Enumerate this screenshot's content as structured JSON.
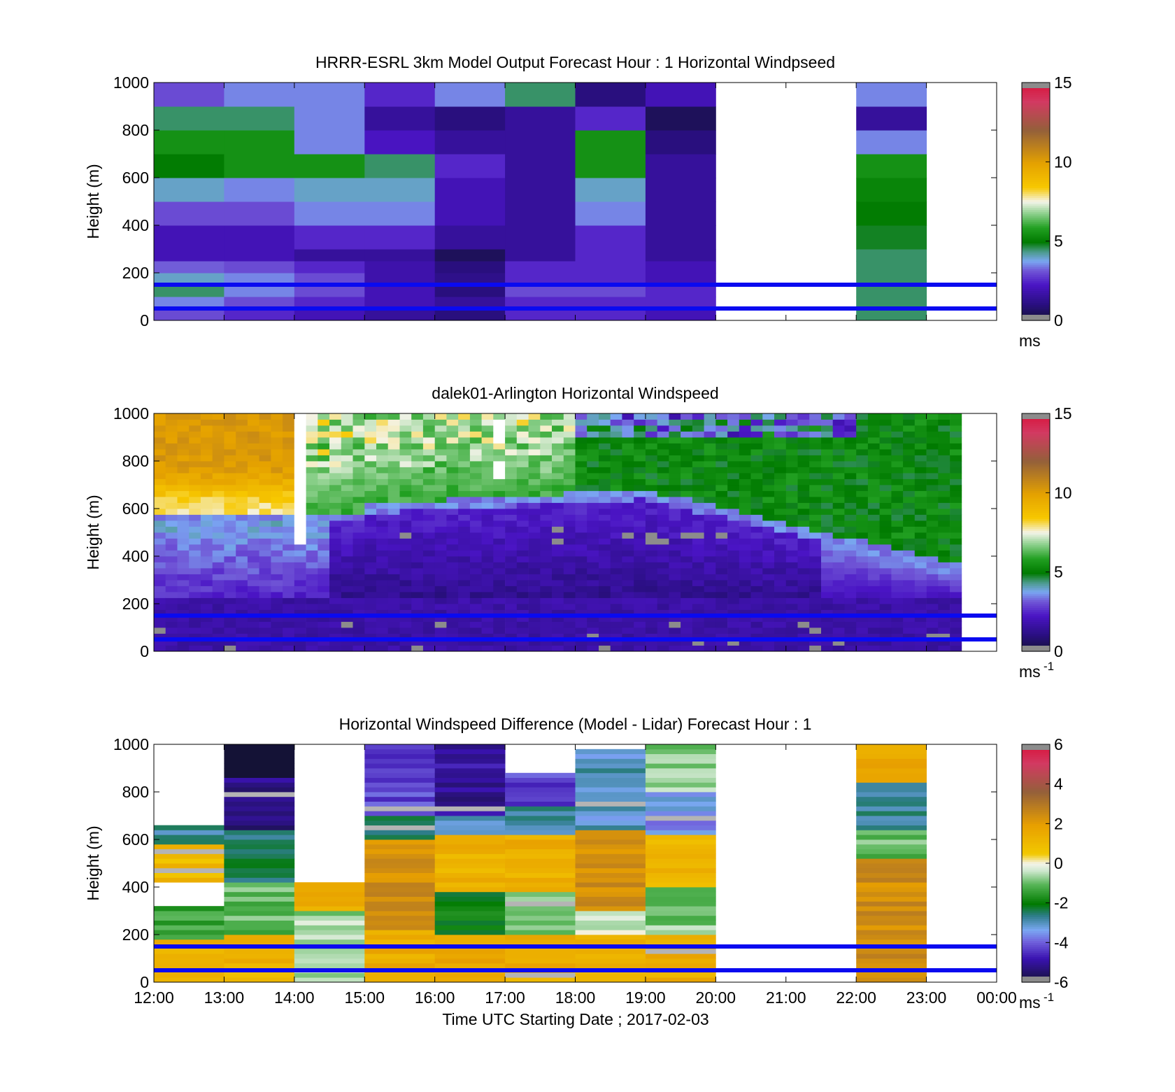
{
  "figure": {
    "xlabel": "Time UTC  Starting Date ; 2017-02-03",
    "xticks": [
      "12:00",
      "13:00",
      "14:00",
      "15:00",
      "16:00",
      "17:00",
      "18:00",
      "19:00",
      "20:00",
      "21:00",
      "22:00",
      "23:00",
      "00:00"
    ]
  },
  "chart_data": [
    {
      "type": "heatmap",
      "title": "HRRR-ESRL 3km Model Output   Forecast Hour : 1 Horizontal Windpseed",
      "xlabel": "",
      "ylabel": "Height (m)",
      "ylim": [
        0,
        1000
      ],
      "yticks": [
        "0",
        "200",
        "400",
        "600",
        "800",
        "1000"
      ],
      "colorbar": {
        "min": 0,
        "max": 15,
        "ticks": [
          "0",
          "5",
          "10",
          "15"
        ],
        "unit": "ms",
        "unit_sup": ""
      },
      "reference_heights": [
        50,
        150
      ],
      "time_bins": [
        "12:00",
        "13:00",
        "14:00",
        "15:00",
        "16:00",
        "17:00",
        "18:00",
        "19:00",
        "20:00",
        "21:00",
        "22:00",
        "23:00"
      ],
      "height_bins": [
        0,
        50,
        100,
        150,
        200,
        250,
        300,
        400,
        500,
        600,
        700,
        800,
        900,
        1000
      ],
      "values": [
        [
          3.0,
          2.5,
          2.0,
          1.5,
          1.0,
          2.5,
          2.5,
          2.0,
          null,
          null,
          4.5,
          null
        ],
        [
          3.5,
          3.0,
          2.5,
          2.0,
          1.5,
          2.5,
          2.5,
          2.5,
          null,
          null,
          4.5,
          null
        ],
        [
          4.5,
          3.5,
          3.0,
          2.0,
          1.0,
          3.0,
          3.0,
          2.5,
          null,
          null,
          4.5,
          null
        ],
        [
          4.0,
          3.5,
          3.0,
          1.8,
          1.2,
          2.5,
          2.5,
          2.0,
          null,
          null,
          4.5,
          null
        ],
        [
          3.2,
          3.0,
          2.5,
          1.8,
          1.0,
          2.5,
          2.5,
          2.0,
          null,
          null,
          4.5,
          null
        ],
        [
          2.0,
          2.0,
          1.5,
          1.5,
          0.5,
          1.5,
          2.5,
          1.5,
          null,
          null,
          4.5,
          null
        ],
        [
          2.0,
          2.0,
          2.5,
          2.5,
          1.5,
          1.5,
          2.5,
          1.5,
          null,
          null,
          4.8,
          null
        ],
        [
          3.0,
          3.0,
          3.5,
          3.5,
          2.0,
          1.5,
          3.5,
          1.5,
          null,
          null,
          5.0,
          null
        ],
        [
          4.0,
          3.5,
          4.0,
          4.0,
          2.0,
          1.5,
          4.0,
          1.5,
          null,
          null,
          5.2,
          null
        ],
        [
          5.0,
          5.5,
          5.5,
          4.5,
          2.5,
          1.5,
          5.5,
          1.5,
          null,
          null,
          5.5,
          null
        ],
        [
          5.5,
          5.5,
          3.5,
          2.2,
          1.5,
          1.5,
          5.5,
          1.0,
          null,
          null,
          3.5,
          null
        ],
        [
          4.5,
          4.5,
          3.5,
          1.5,
          1.0,
          1.5,
          2.5,
          0.5,
          null,
          null,
          1.5,
          null
        ],
        [
          3.0,
          3.5,
          3.5,
          2.5,
          3.5,
          4.5,
          1.0,
          2.0,
          null,
          null,
          3.5,
          null
        ]
      ]
    },
    {
      "type": "heatmap",
      "title": "dalek01-Arlington  Horizontal Windspeed",
      "xlabel": "",
      "ylabel": "Height (m)",
      "ylim": [
        0,
        1000
      ],
      "yticks": [
        "0",
        "200",
        "400",
        "600",
        "800",
        "1000"
      ],
      "colorbar": {
        "min": 0,
        "max": 15,
        "ticks": [
          "0",
          "5",
          "10",
          "15"
        ],
        "unit": "ms",
        "unit_sup": "-1"
      },
      "reference_heights": [
        50,
        150
      ]
    },
    {
      "type": "heatmap",
      "title": "Horizontal Windspeed Difference (Model - Lidar) Forecast Hour : 1",
      "xlabel": "Time UTC  Starting Date ; 2017-02-03",
      "ylabel": "Height (m)",
      "ylim": [
        0,
        1000
      ],
      "yticks": [
        "0",
        "200",
        "400",
        "600",
        "800",
        "1000"
      ],
      "colorbar": {
        "min": -6,
        "max": 6,
        "ticks": [
          "-6",
          "-4",
          "-2",
          "0",
          "2",
          "4",
          "6"
        ],
        "unit": "ms",
        "unit_sup": "-1"
      },
      "reference_heights": [
        50,
        150
      ]
    }
  ]
}
